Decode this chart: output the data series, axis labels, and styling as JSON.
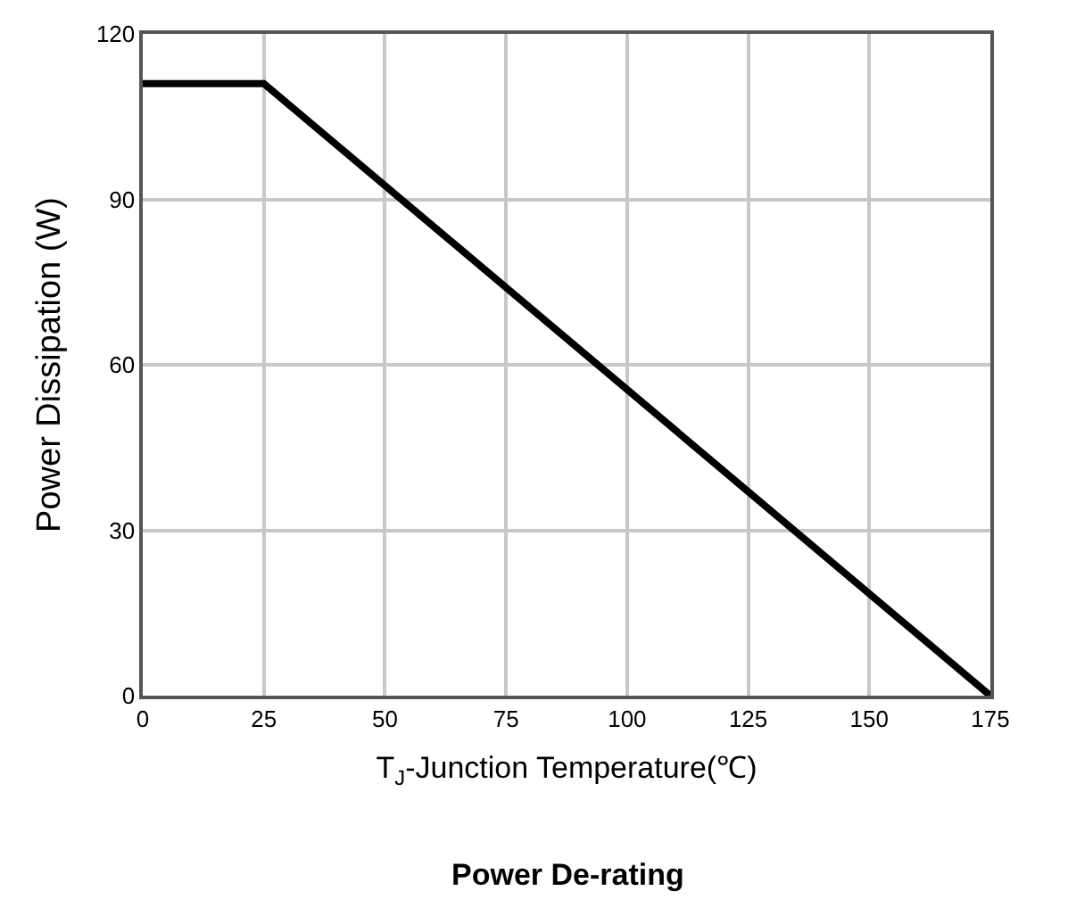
{
  "chart_data": {
    "type": "line",
    "title": "Power De-rating",
    "xlabel": "T$_{J}$-Junction Temperature(℃)",
    "ylabel": "Power Dissipation (W)",
    "x": [
      0,
      25,
      175
    ],
    "series": [
      {
        "color": "#000000",
        "values": [
          111,
          111,
          0
        ]
      }
    ],
    "xlim": [
      0,
      175
    ],
    "xticks": [
      0,
      25,
      50,
      75,
      100,
      125,
      150,
      175
    ],
    "ylim": [
      0,
      120
    ],
    "yticks": [
      0,
      30,
      60,
      90,
      120
    ],
    "grid": true,
    "marker": "none",
    "line_style": "solid"
  }
}
